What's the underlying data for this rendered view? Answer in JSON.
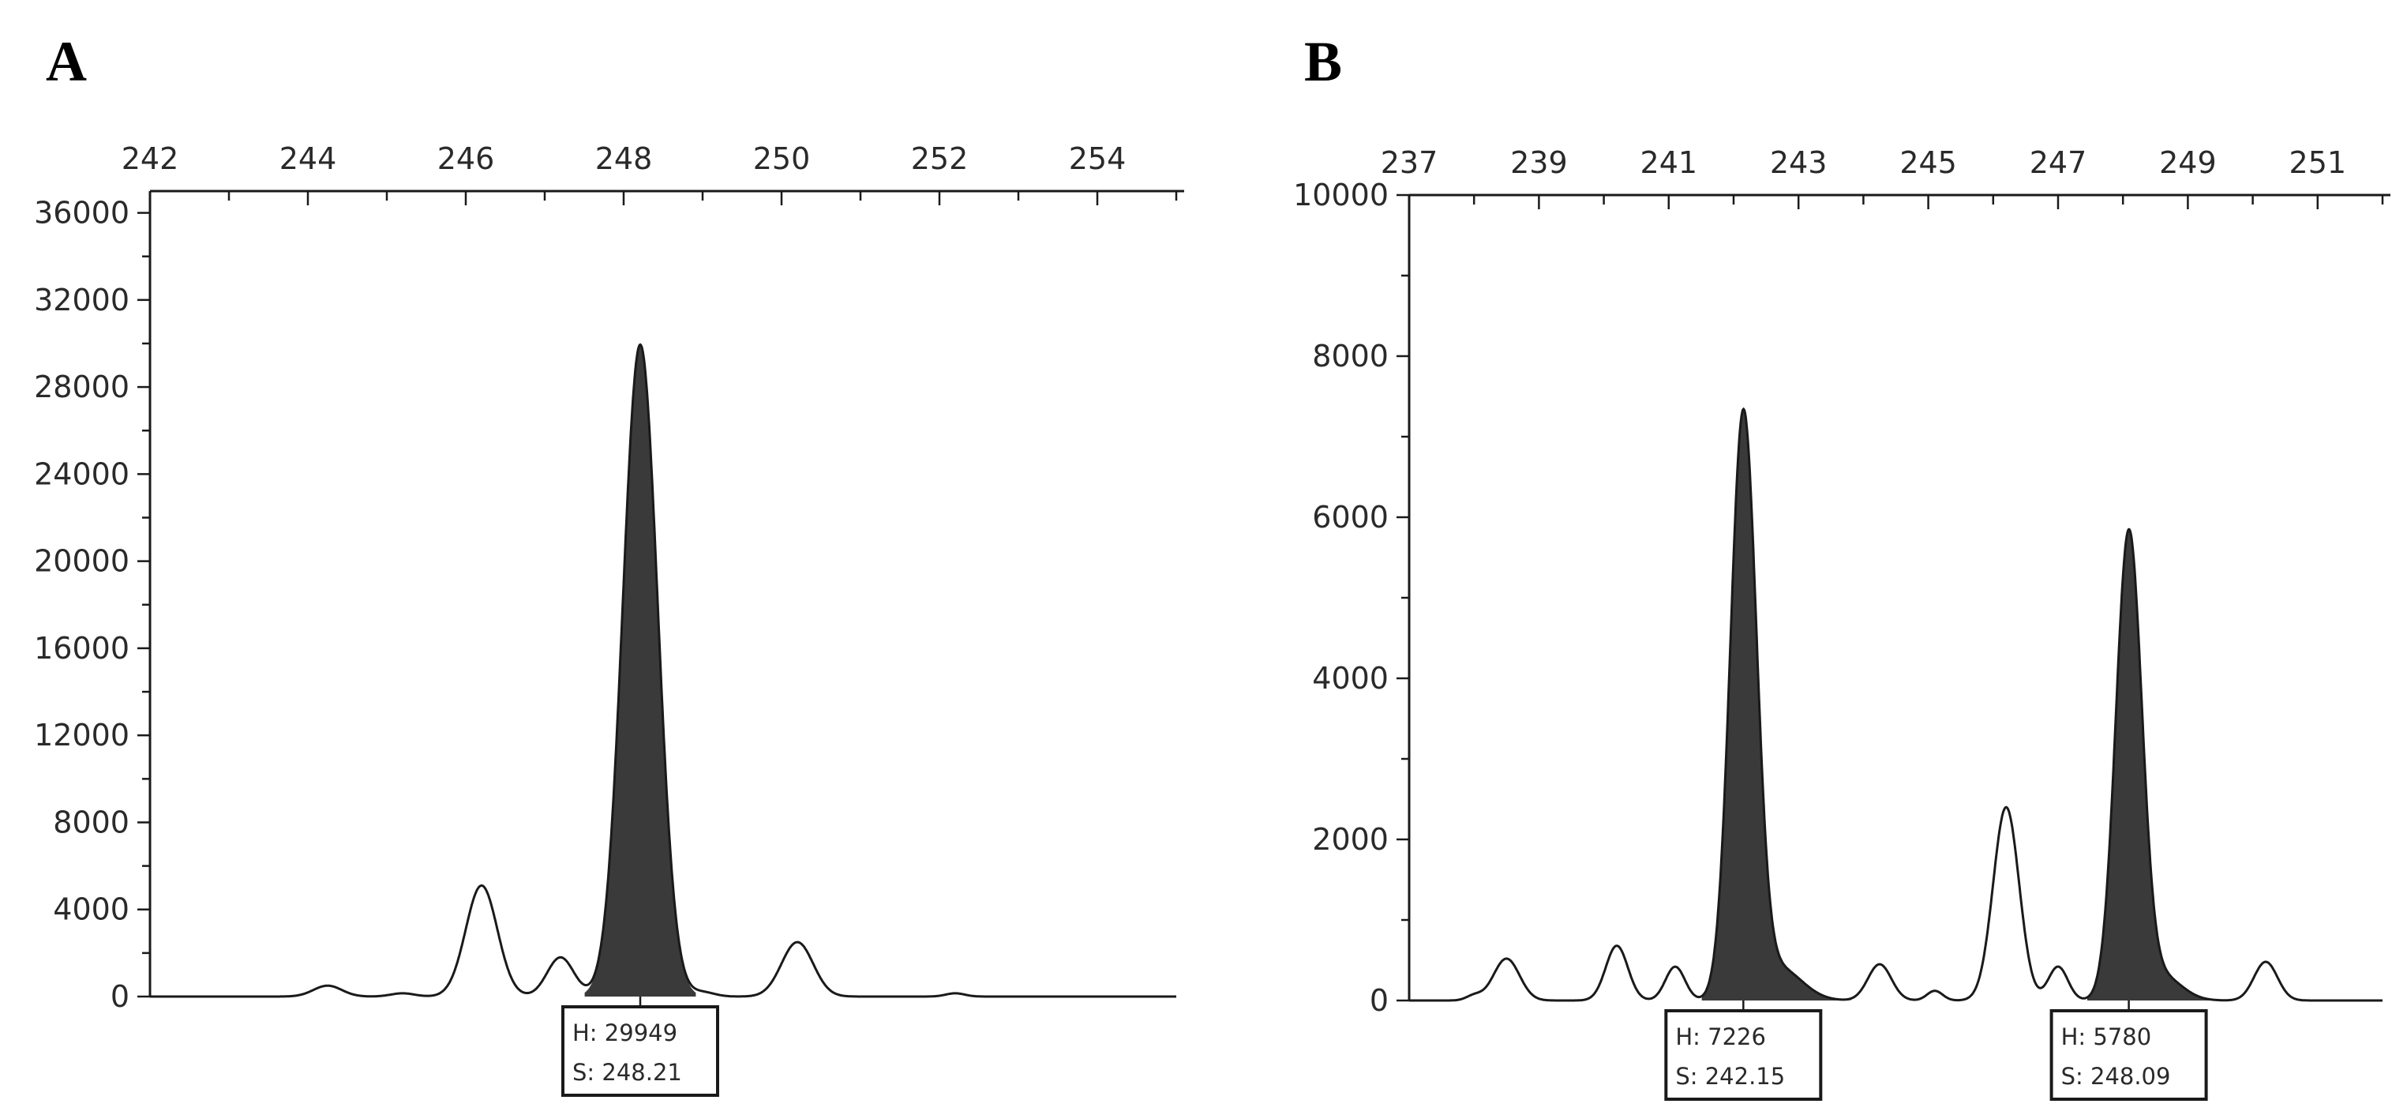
{
  "chart_data": [
    {
      "type": "line",
      "panel": "A",
      "x_ticks": [
        242,
        244,
        246,
        248,
        250,
        252,
        254
      ],
      "y_ticks": [
        0,
        4000,
        8000,
        12000,
        16000,
        20000,
        24000,
        28000,
        32000,
        36000
      ],
      "xlim": [
        242,
        255
      ],
      "ylim": [
        0,
        37000
      ],
      "grid": false,
      "peaks": [
        {
          "x": 244.25,
          "y": 500,
          "width": 0.18
        },
        {
          "x": 245.2,
          "y": 150,
          "width": 0.15
        },
        {
          "x": 246.2,
          "y": 5100,
          "width": 0.2
        },
        {
          "x": 247.2,
          "y": 1800,
          "width": 0.17
        },
        {
          "x": 248.21,
          "y": 29949,
          "width": 0.22,
          "filled": true
        },
        {
          "x": 249.0,
          "y": 200,
          "width": 0.15
        },
        {
          "x": 250.2,
          "y": 2500,
          "width": 0.2
        },
        {
          "x": 252.2,
          "y": 150,
          "width": 0.12
        }
      ],
      "annotations": [
        {
          "x": 248.21,
          "h_label": "H: 29949",
          "s_label": "S: 248.21"
        }
      ]
    },
    {
      "type": "line",
      "panel": "B",
      "x_ticks": [
        237,
        239,
        241,
        243,
        245,
        247,
        249,
        251
      ],
      "y_ticks": [
        0,
        2000,
        4000,
        6000,
        8000,
        10000
      ],
      "xlim": [
        237,
        252
      ],
      "ylim": [
        0,
        10000
      ],
      "grid": false,
      "peaks": [
        {
          "x": 238.0,
          "y": 60,
          "width": 0.12
        },
        {
          "x": 238.5,
          "y": 520,
          "width": 0.2
        },
        {
          "x": 240.2,
          "y": 680,
          "width": 0.17
        },
        {
          "x": 241.1,
          "y": 420,
          "width": 0.15
        },
        {
          "x": 242.15,
          "y": 7226,
          "width": 0.2,
          "filled": true
        },
        {
          "x": 242.7,
          "y": 400,
          "width": 0.35,
          "filled": true
        },
        {
          "x": 244.25,
          "y": 450,
          "width": 0.18
        },
        {
          "x": 245.1,
          "y": 120,
          "width": 0.12
        },
        {
          "x": 246.2,
          "y": 2400,
          "width": 0.2
        },
        {
          "x": 247.0,
          "y": 420,
          "width": 0.15
        },
        {
          "x": 248.09,
          "y": 5780,
          "width": 0.2,
          "filled": true
        },
        {
          "x": 248.6,
          "y": 300,
          "width": 0.3,
          "filled": true
        },
        {
          "x": 250.2,
          "y": 480,
          "width": 0.18
        }
      ],
      "annotations": [
        {
          "x": 242.15,
          "h_label": "H: 7226",
          "s_label": "S: 242.15"
        },
        {
          "x": 248.09,
          "h_label": "H: 5780",
          "s_label": "S: 248.09"
        }
      ]
    }
  ],
  "colors": {
    "trace": "#1a1a1a",
    "filled_peak": "#3a3a3a",
    "axis": "#1a1a1a",
    "text": "#2a2a2a"
  }
}
